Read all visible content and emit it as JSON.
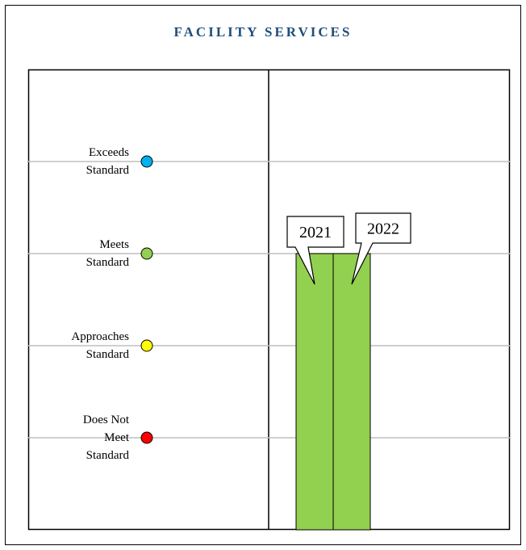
{
  "chart_data": {
    "type": "bar",
    "title": "FACILITY SERVICES",
    "categories": [
      "2021",
      "2022"
    ],
    "values": [
      3,
      3
    ],
    "color": "#92d050",
    "ylim": [
      0,
      5
    ],
    "yticks": [
      {
        "value": 1,
        "label": "Does Not\nMeet\nStandard"
      },
      {
        "value": 2,
        "label": "Approaches\nStandard"
      },
      {
        "value": 3,
        "label": "Meets\nStandard"
      },
      {
        "value": 4,
        "label": "Exceeds\nStandard"
      }
    ],
    "ytick_colors": [
      "#ff0000",
      "#ffff00",
      "#92d050",
      "#00b0f0"
    ],
    "grid": true
  }
}
